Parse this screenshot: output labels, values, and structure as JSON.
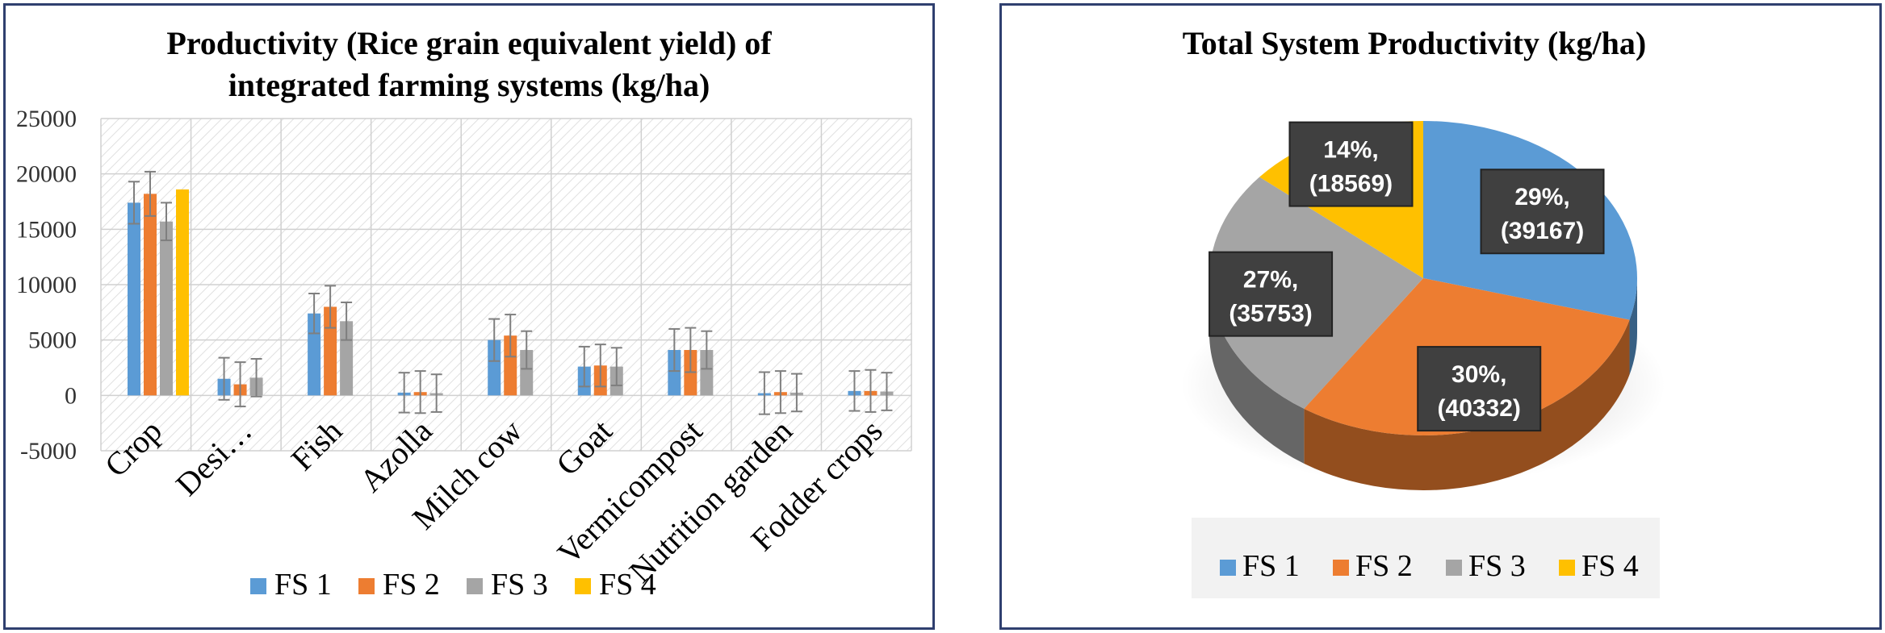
{
  "colors": {
    "FS 1": "#5b9bd5",
    "FS 2": "#ed7d31",
    "FS 3": "#a5a5a5",
    "FS 4": "#ffc000"
  },
  "chart_data": [
    {
      "type": "bar",
      "title": [
        "Productivity (Rice grain equivalent yield) of",
        "integrated farming systems (kg/ha)"
      ],
      "categories": [
        "Crop",
        "Desi…",
        "Fish",
        "Azolla",
        "Milch cow",
        "Goat",
        "Vermicompost",
        "Nutrition garden",
        "Fodder crops"
      ],
      "yticks": [
        "25000",
        "20000",
        "15000",
        "10000",
        "5000",
        "0",
        "-5000"
      ],
      "ylim": [
        -5000,
        25000
      ],
      "grid": true,
      "legend": "bottom",
      "error_bars": true,
      "series": [
        {
          "name": "FS 1",
          "values": [
            17400,
            1500,
            7400,
            250,
            5000,
            2600,
            4100,
            200,
            400
          ],
          "errors": [
            1900,
            1900,
            1800,
            1800,
            1900,
            1800,
            1900,
            1900,
            1800
          ]
        },
        {
          "name": "FS 2",
          "values": [
            18200,
            1000,
            8000,
            300,
            5400,
            2700,
            4100,
            300,
            400
          ],
          "errors": [
            2000,
            2000,
            1900,
            1900,
            1900,
            1900,
            2000,
            1900,
            1900
          ]
        },
        {
          "name": "FS 3",
          "values": [
            15700,
            1600,
            6700,
            200,
            4100,
            2600,
            4100,
            250,
            350
          ],
          "errors": [
            1700,
            1700,
            1700,
            1700,
            1700,
            1700,
            1700,
            1700,
            1700
          ]
        },
        {
          "name": "FS 4",
          "values": [
            18600,
            null,
            null,
            null,
            null,
            null,
            null,
            null,
            null
          ],
          "errors": [
            null,
            null,
            null,
            null,
            null,
            null,
            null,
            null,
            null
          ]
        }
      ]
    },
    {
      "type": "pie",
      "title": "Total System Productivity (kg/ha)",
      "legend": "bottom",
      "slices": [
        {
          "name": "FS 1",
          "value": 39167,
          "percent": 29,
          "label": [
            "29%,",
            "(39167)"
          ]
        },
        {
          "name": "FS 2",
          "value": 40332,
          "percent": 30,
          "label": [
            "30%,",
            "(40332)"
          ]
        },
        {
          "name": "FS 3",
          "value": 35753,
          "percent": 27,
          "label": [
            "27%,",
            "(35753)"
          ]
        },
        {
          "name": "FS 4",
          "value": 18569,
          "percent": 14,
          "label": [
            "14%,",
            "(18569)"
          ]
        }
      ]
    }
  ]
}
